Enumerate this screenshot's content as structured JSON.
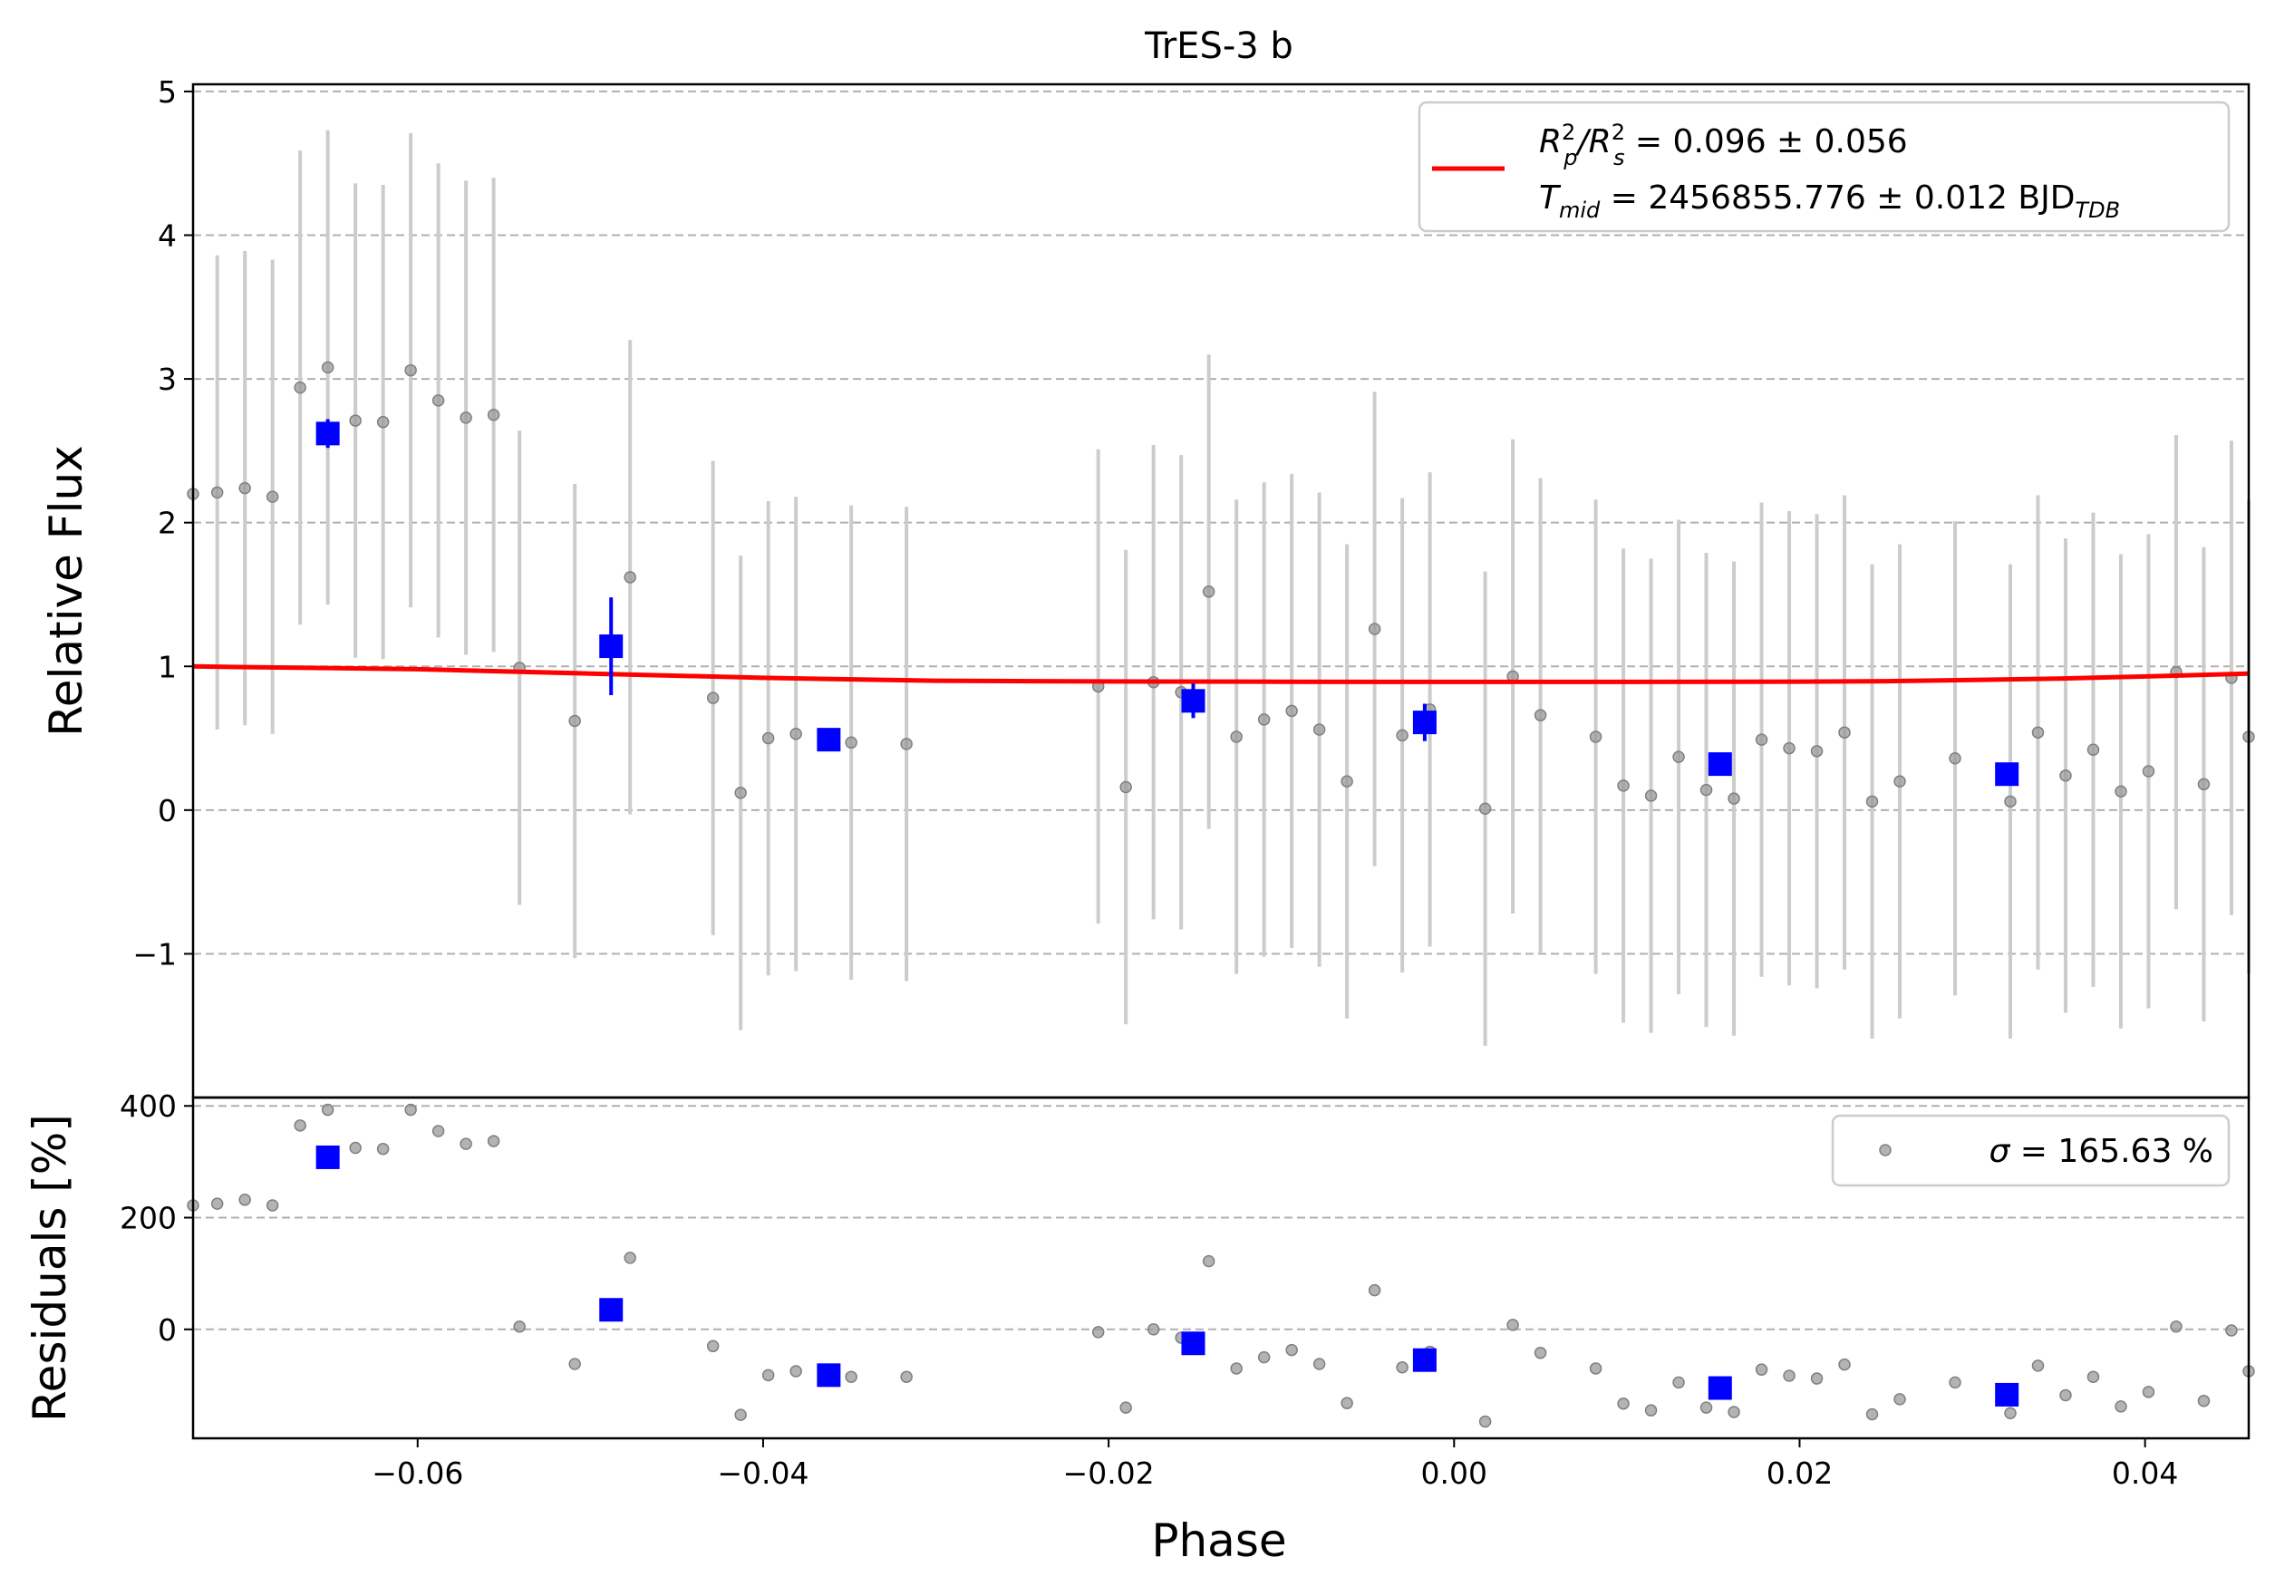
{
  "colors": {
    "raw": "#999999",
    "raw_err": "#cccccc",
    "binned": "#0000ff",
    "model": "#ff0000",
    "grid": "#b0b0b0",
    "legend_border": "#cccccc"
  },
  "chart_data": [
    {
      "type": "scatter",
      "panel": "flux",
      "title": "TrES-3 b",
      "ylabel": "Relative Flux",
      "xlim": [
        -0.073,
        0.046
      ],
      "ylim": [
        -2.0,
        5.05
      ],
      "yticks": [
        -1,
        0,
        1,
        2,
        3,
        4,
        5
      ],
      "ytick_labels": [
        "−1",
        "0",
        "1",
        "2",
        "3",
        "4",
        "5"
      ],
      "grid": "horizontal dashed",
      "legend_position": "top-right",
      "legend": {
        "line1": {
          "prefix": "R",
          "sub1": "p",
          "sup1": "2",
          "slash": "/R",
          "sub2": "s",
          "sup2": "2",
          "rest": " = 0.096 ± 0.056"
        },
        "line2": {
          "prefix": "T",
          "sub1": "mid",
          "rest": " = 2456855.776 ± 0.012 BJD",
          "sub2": "TDB"
        }
      },
      "series": [
        {
          "marker": "circle",
          "color": "#999999",
          "errorbar_color": "#cccccc",
          "points": [
            {
              "x": -0.073,
              "y": 2.2,
              "err": 0
            },
            {
              "x": -0.0716,
              "y": 2.21,
              "err": 1.65
            },
            {
              "x": -0.07,
              "y": 2.24,
              "err": 1.65
            },
            {
              "x": -0.0684,
              "y": 2.18,
              "err": 1.65
            },
            {
              "x": -0.0668,
              "y": 2.94,
              "err": 1.65
            },
            {
              "x": -0.0652,
              "y": 3.08,
              "err": 1.65
            },
            {
              "x": -0.0636,
              "y": 2.71,
              "err": 1.65
            },
            {
              "x": -0.062,
              "y": 2.7,
              "err": 1.65
            },
            {
              "x": -0.0604,
              "y": 3.06,
              "err": 1.65
            },
            {
              "x": -0.0588,
              "y": 2.85,
              "err": 1.65
            },
            {
              "x": -0.0572,
              "y": 2.73,
              "err": 1.65
            },
            {
              "x": -0.0556,
              "y": 2.75,
              "err": 1.65
            },
            {
              "x": -0.0541,
              "y": 0.99,
              "err": 1.65
            },
            {
              "x": -0.0509,
              "y": 0.62,
              "err": 1.65
            },
            {
              "x": -0.0477,
              "y": 1.62,
              "err": 1.65
            },
            {
              "x": -0.0429,
              "y": 0.78,
              "err": 1.65
            },
            {
              "x": -0.0413,
              "y": 0.12,
              "err": 1.65
            },
            {
              "x": -0.0397,
              "y": 0.5,
              "err": 1.65
            },
            {
              "x": -0.0381,
              "y": 0.53,
              "err": 1.65
            },
            {
              "x": -0.0349,
              "y": 0.47,
              "err": 1.65
            },
            {
              "x": -0.0317,
              "y": 0.46,
              "err": 1.65
            },
            {
              "x": -0.0206,
              "y": 0.86,
              "err": 1.65
            },
            {
              "x": -0.019,
              "y": 0.16,
              "err": 1.65
            },
            {
              "x": -0.0174,
              "y": 0.89,
              "err": 1.65
            },
            {
              "x": -0.0158,
              "y": 0.82,
              "err": 1.65
            },
            {
              "x": -0.0142,
              "y": 1.52,
              "err": 1.65
            },
            {
              "x": -0.0126,
              "y": 0.51,
              "err": 1.65
            },
            {
              "x": -0.011,
              "y": 0.63,
              "err": 1.65
            },
            {
              "x": -0.0094,
              "y": 0.69,
              "err": 1.65
            },
            {
              "x": -0.0078,
              "y": 0.56,
              "err": 1.65
            },
            {
              "x": -0.0062,
              "y": 0.2,
              "err": 1.65
            },
            {
              "x": -0.0046,
              "y": 1.26,
              "err": 1.65
            },
            {
              "x": -0.003,
              "y": 0.52,
              "err": 1.65
            },
            {
              "x": -0.0014,
              "y": 0.7,
              "err": 1.65
            },
            {
              "x": 0.0018,
              "y": 0.01,
              "err": 1.65
            },
            {
              "x": 0.0034,
              "y": 0.93,
              "err": 1.65
            },
            {
              "x": 0.005,
              "y": 0.66,
              "err": 1.65
            },
            {
              "x": 0.0082,
              "y": 0.51,
              "err": 1.65
            },
            {
              "x": 0.0098,
              "y": 0.17,
              "err": 1.65
            },
            {
              "x": 0.0114,
              "y": 0.1,
              "err": 1.65
            },
            {
              "x": 0.013,
              "y": 0.37,
              "err": 1.65
            },
            {
              "x": 0.0146,
              "y": 0.14,
              "err": 1.65
            },
            {
              "x": 0.0162,
              "y": 0.08,
              "err": 1.65
            },
            {
              "x": 0.0178,
              "y": 0.49,
              "err": 1.65
            },
            {
              "x": 0.0194,
              "y": 0.43,
              "err": 1.65
            },
            {
              "x": 0.021,
              "y": 0.41,
              "err": 1.65
            },
            {
              "x": 0.0226,
              "y": 0.54,
              "err": 1.65
            },
            {
              "x": 0.0242,
              "y": 0.06,
              "err": 1.65
            },
            {
              "x": 0.0258,
              "y": 0.2,
              "err": 1.65
            },
            {
              "x": 0.029,
              "y": 0.36,
              "err": 1.65
            },
            {
              "x": 0.0322,
              "y": 0.06,
              "err": 1.65
            },
            {
              "x": 0.0338,
              "y": 0.54,
              "err": 1.65
            },
            {
              "x": 0.0354,
              "y": 0.24,
              "err": 1.65
            },
            {
              "x": 0.037,
              "y": 0.42,
              "err": 1.65
            },
            {
              "x": 0.0386,
              "y": 0.13,
              "err": 1.65
            },
            {
              "x": 0.0402,
              "y": 0.27,
              "err": 1.65
            },
            {
              "x": 0.0418,
              "y": 0.96,
              "err": 1.65
            },
            {
              "x": 0.0434,
              "y": 0.18,
              "err": 1.65
            },
            {
              "x": 0.045,
              "y": 0.92,
              "err": 1.65
            },
            {
              "x": 0.046,
              "y": 0.51,
              "err": 1.65
            }
          ]
        },
        {
          "marker": "square",
          "color": "#0000ff",
          "points": [
            {
              "x": -0.0652,
              "y": 2.62,
              "err": 0.1
            },
            {
              "x": -0.0488,
              "y": 1.14,
              "err": 0.34
            },
            {
              "x": -0.0362,
              "y": 0.49,
              "err": 0.05
            },
            {
              "x": -0.0151,
              "y": 0.76,
              "err": 0.12
            },
            {
              "x": -0.0017,
              "y": 0.61,
              "err": 0.13
            },
            {
              "x": 0.0154,
              "y": 0.32,
              "err": 0.05
            },
            {
              "x": 0.032,
              "y": 0.25,
              "err": 0.05
            }
          ]
        },
        {
          "type": "line",
          "color": "#ff0000",
          "points": [
            {
              "x": -0.073,
              "y": 1.0
            },
            {
              "x": -0.06,
              "y": 0.98
            },
            {
              "x": -0.05,
              "y": 0.95
            },
            {
              "x": -0.04,
              "y": 0.92
            },
            {
              "x": -0.03,
              "y": 0.9
            },
            {
              "x": -0.02,
              "y": 0.895
            },
            {
              "x": -0.01,
              "y": 0.893
            },
            {
              "x": 0.0,
              "y": 0.892
            },
            {
              "x": 0.01,
              "y": 0.892
            },
            {
              "x": 0.02,
              "y": 0.894
            },
            {
              "x": 0.025,
              "y": 0.897
            },
            {
              "x": 0.03,
              "y": 0.905
            },
            {
              "x": 0.035,
              "y": 0.915
            },
            {
              "x": 0.04,
              "y": 0.93
            },
            {
              "x": 0.046,
              "y": 0.95
            }
          ]
        }
      ]
    },
    {
      "type": "scatter",
      "panel": "residuals",
      "xlabel": "Phase",
      "ylabel": "Residuals [%]",
      "xlim": [
        -0.073,
        0.046
      ],
      "ylim": [
        -195,
        415
      ],
      "xticks": [
        -0.06,
        -0.04,
        -0.02,
        0.0,
        0.02,
        0.04
      ],
      "xtick_labels": [
        "−0.06",
        "−0.04",
        "−0.02",
        "0.00",
        "0.02",
        "0.04"
      ],
      "yticks": [
        0,
        200,
        400
      ],
      "ytick_labels": [
        "0",
        "200",
        "400"
      ],
      "grid": "horizontal dashed",
      "legend_position": "top-right",
      "legend": {
        "sigma_symbol": "σ",
        "rest": " = 165.63 %"
      },
      "series": [
        {
          "marker": "circle",
          "color": "#999999",
          "points": [
            {
              "x": -0.073,
              "y": 222
            },
            {
              "x": -0.0716,
              "y": 225
            },
            {
              "x": -0.07,
              "y": 232
            },
            {
              "x": -0.0684,
              "y": 222
            },
            {
              "x": -0.0668,
              "y": 365
            },
            {
              "x": -0.0652,
              "y": 393
            },
            {
              "x": -0.0636,
              "y": 325
            },
            {
              "x": -0.062,
              "y": 323
            },
            {
              "x": -0.0604,
              "y": 393
            },
            {
              "x": -0.0588,
              "y": 355
            },
            {
              "x": -0.0572,
              "y": 332
            },
            {
              "x": -0.0556,
              "y": 337
            },
            {
              "x": -0.0541,
              "y": 5
            },
            {
              "x": -0.0509,
              "y": -62
            },
            {
              "x": -0.0477,
              "y": 128
            },
            {
              "x": -0.0429,
              "y": -30
            },
            {
              "x": -0.0413,
              "y": -153
            },
            {
              "x": -0.0397,
              "y": -82
            },
            {
              "x": -0.0381,
              "y": -75
            },
            {
              "x": -0.0349,
              "y": -85
            },
            {
              "x": -0.0317,
              "y": -85
            },
            {
              "x": -0.0206,
              "y": -5
            },
            {
              "x": -0.019,
              "y": -140
            },
            {
              "x": -0.0174,
              "y": 0
            },
            {
              "x": -0.0158,
              "y": -15
            },
            {
              "x": -0.0142,
              "y": 122
            },
            {
              "x": -0.0126,
              "y": -70
            },
            {
              "x": -0.011,
              "y": -50
            },
            {
              "x": -0.0094,
              "y": -37
            },
            {
              "x": -0.0078,
              "y": -62
            },
            {
              "x": -0.0062,
              "y": -132
            },
            {
              "x": -0.0046,
              "y": 70
            },
            {
              "x": -0.003,
              "y": -68
            },
            {
              "x": -0.0014,
              "y": -40
            },
            {
              "x": 0.0018,
              "y": -165
            },
            {
              "x": 0.0034,
              "y": 8
            },
            {
              "x": 0.005,
              "y": -42
            },
            {
              "x": 0.0082,
              "y": -70
            },
            {
              "x": 0.0098,
              "y": -133
            },
            {
              "x": 0.0114,
              "y": -145
            },
            {
              "x": 0.013,
              "y": -95
            },
            {
              "x": 0.0146,
              "y": -140
            },
            {
              "x": 0.0162,
              "y": -148
            },
            {
              "x": 0.0178,
              "y": -72
            },
            {
              "x": 0.0194,
              "y": -83
            },
            {
              "x": 0.021,
              "y": -88
            },
            {
              "x": 0.0226,
              "y": -63
            },
            {
              "x": 0.0242,
              "y": -152
            },
            {
              "x": 0.0258,
              "y": -125
            },
            {
              "x": 0.029,
              "y": -95
            },
            {
              "x": 0.0322,
              "y": -150
            },
            {
              "x": 0.0338,
              "y": -65
            },
            {
              "x": 0.0354,
              "y": -118
            },
            {
              "x": 0.037,
              "y": -85
            },
            {
              "x": 0.0386,
              "y": -138
            },
            {
              "x": 0.0402,
              "y": -112
            },
            {
              "x": 0.0418,
              "y": 5
            },
            {
              "x": 0.0434,
              "y": -128
            },
            {
              "x": 0.045,
              "y": -2
            },
            {
              "x": 0.046,
              "y": -75
            }
          ]
        },
        {
          "marker": "square",
          "color": "#0000ff",
          "points": [
            {
              "x": -0.0652,
              "y": 308
            },
            {
              "x": -0.0488,
              "y": 35
            },
            {
              "x": -0.0362,
              "y": -82
            },
            {
              "x": -0.0151,
              "y": -25
            },
            {
              "x": -0.0017,
              "y": -55
            },
            {
              "x": 0.0154,
              "y": -105
            },
            {
              "x": 0.032,
              "y": -117
            }
          ]
        }
      ]
    }
  ]
}
